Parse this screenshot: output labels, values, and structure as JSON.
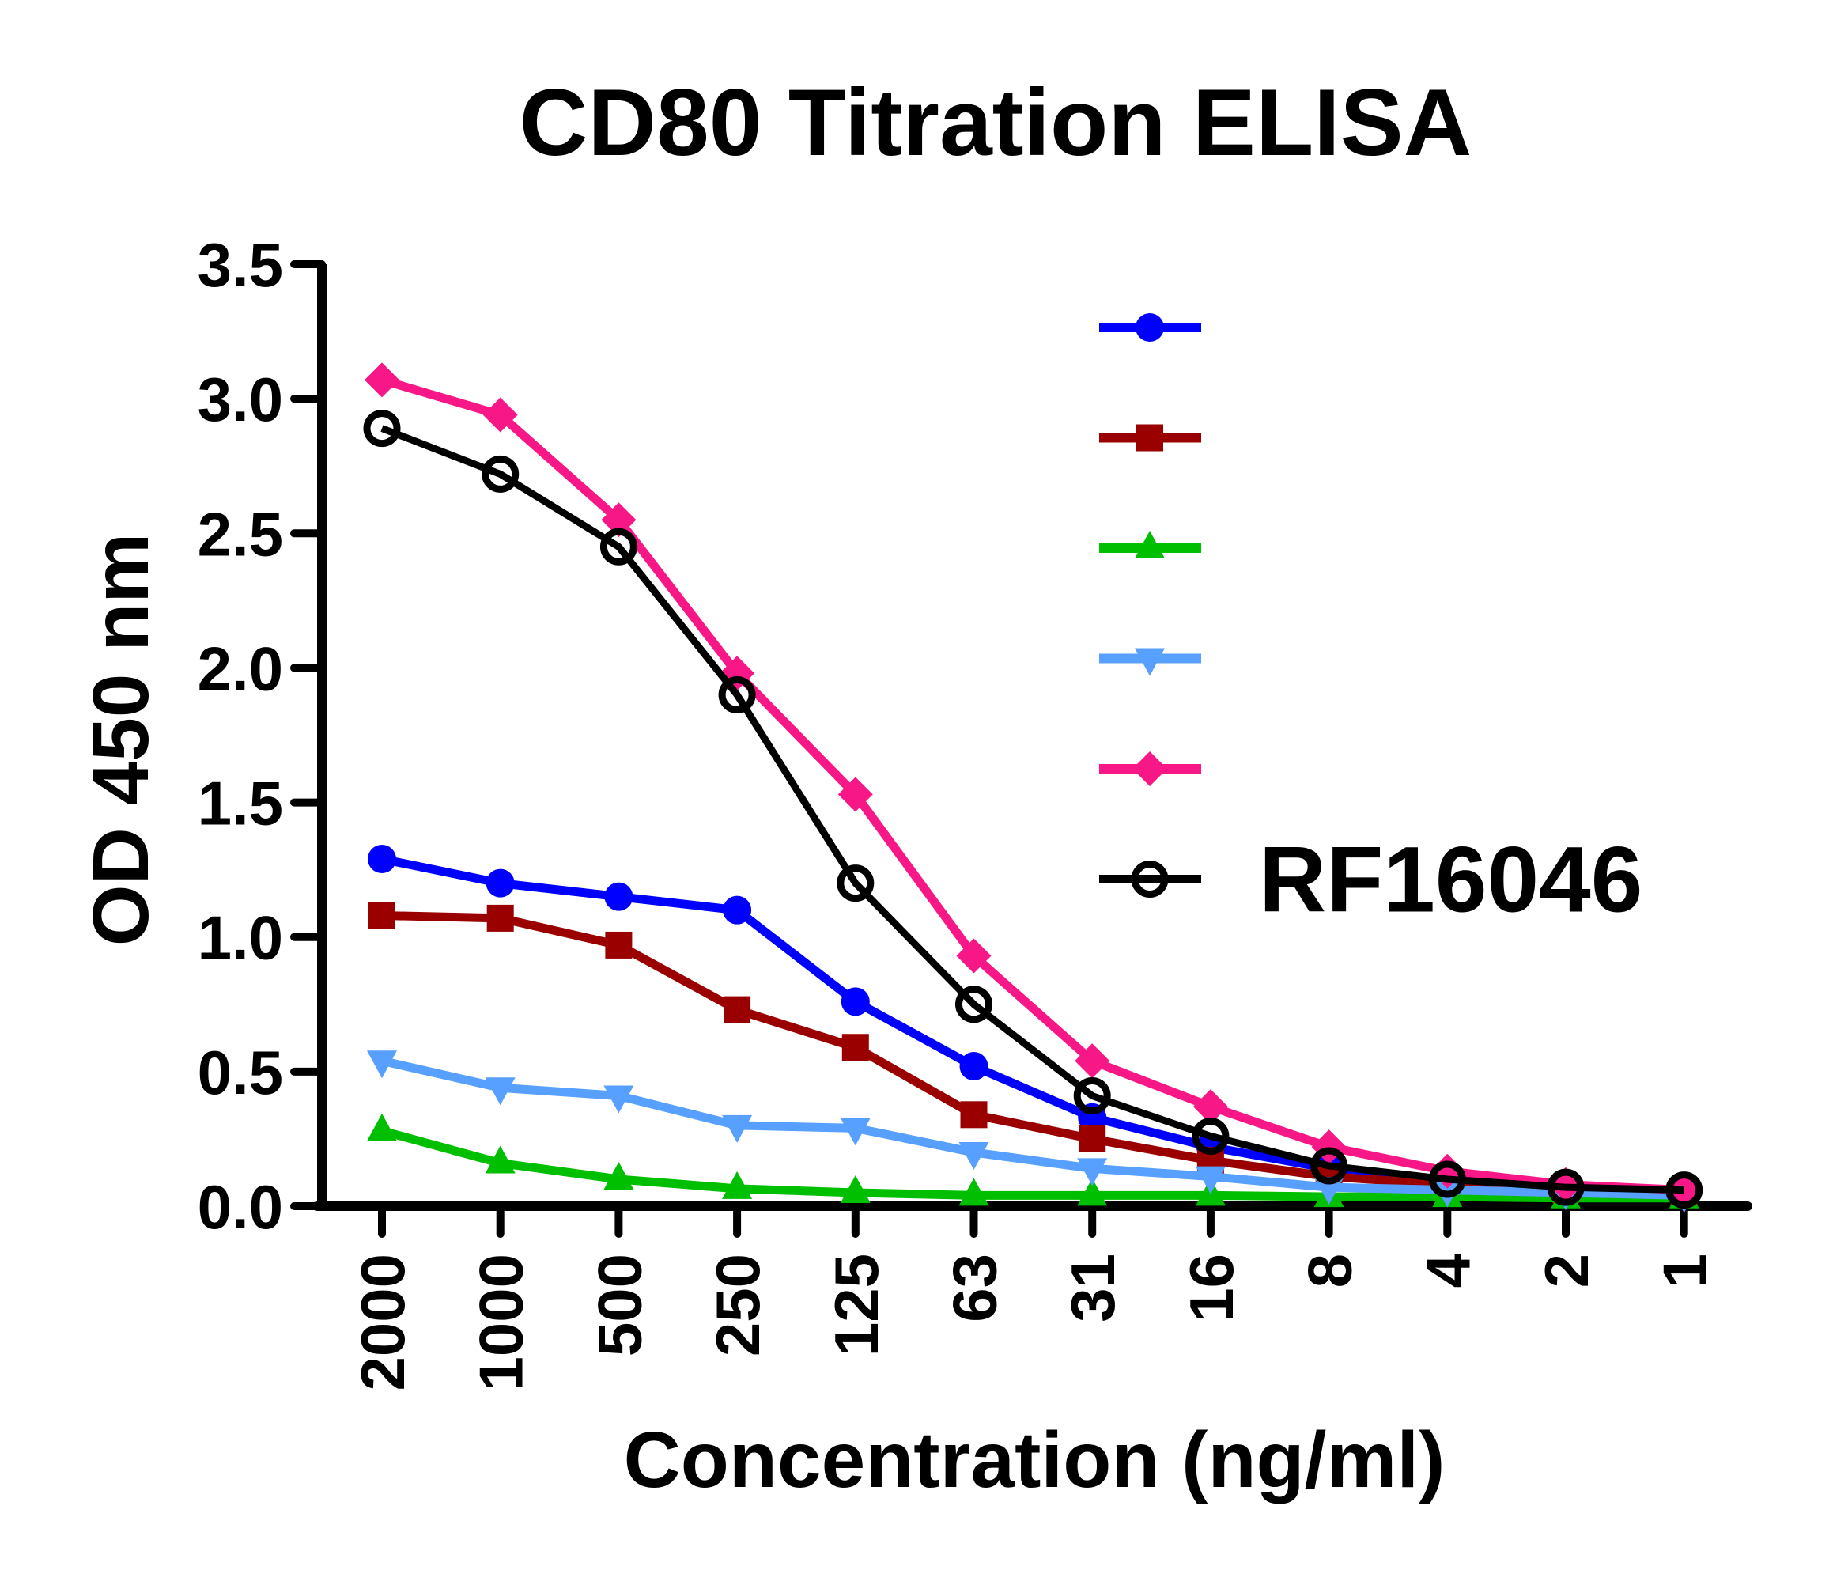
{
  "chart_data": {
    "type": "line",
    "title": "CD80 Titration ELISA",
    "xlabel": "Concentration (ng/ml)",
    "ylabel": "OD 450 nm",
    "categories": [
      "2000",
      "1000",
      "500",
      "250",
      "125",
      "63",
      "31",
      "16",
      "8",
      "4",
      "2",
      "1"
    ],
    "ylim": [
      0,
      3.5
    ],
    "yticks": [
      "0.0",
      "0.5",
      "1.0",
      "1.5",
      "2.0",
      "2.5",
      "3.0",
      "3.5"
    ],
    "ytick_values": [
      0,
      0.5,
      1.0,
      1.5,
      2.0,
      2.5,
      3.0,
      3.5
    ],
    "grid": false,
    "legend_position": "top-right",
    "series": [
      {
        "name": "",
        "color": "#0000ff",
        "marker": "circle",
        "values": [
          1.29,
          1.2,
          1.15,
          1.1,
          0.76,
          0.52,
          0.33,
          0.22,
          0.14,
          0.09,
          0.07,
          0.06
        ]
      },
      {
        "name": "",
        "color": "#9b0000",
        "marker": "square",
        "values": [
          1.08,
          1.07,
          0.97,
          0.73,
          0.59,
          0.34,
          0.25,
          0.17,
          0.11,
          0.08,
          0.06,
          0.05
        ]
      },
      {
        "name": "",
        "color": "#00bf00",
        "marker": "triangle-up",
        "values": [
          0.28,
          0.16,
          0.1,
          0.065,
          0.05,
          0.04,
          0.04,
          0.04,
          0.035,
          0.035,
          0.03,
          0.03
        ]
      },
      {
        "name": "",
        "color": "#57a0ff",
        "marker": "triangle-down",
        "values": [
          0.54,
          0.44,
          0.41,
          0.3,
          0.29,
          0.2,
          0.14,
          0.11,
          0.07,
          0.06,
          0.05,
          0.04
        ]
      },
      {
        "name": "",
        "color": "#f71786",
        "marker": "diamond",
        "values": [
          3.07,
          2.94,
          2.55,
          1.98,
          1.53,
          0.93,
          0.54,
          0.37,
          0.22,
          0.13,
          0.08,
          0.06
        ]
      },
      {
        "name": "RF16046",
        "color": "#000000",
        "marker": "open-circle",
        "values": [
          2.89,
          2.72,
          2.45,
          1.9,
          1.2,
          0.75,
          0.41,
          0.26,
          0.15,
          0.1,
          0.07,
          0.06
        ]
      }
    ]
  }
}
